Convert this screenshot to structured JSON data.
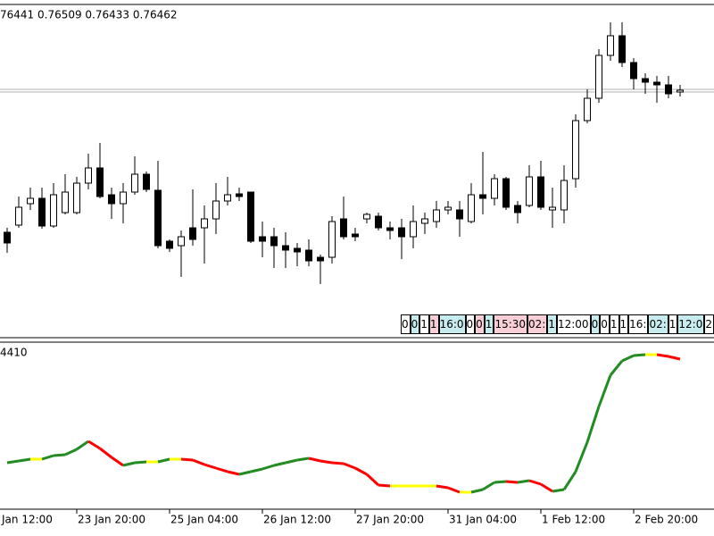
{
  "chart_data": {
    "type": "candlestick",
    "ohlc_text": "76441 0.76509 0.76433 0.76462",
    "ylim": [
      0.7102,
      0.7842
    ],
    "open": [
      0.7332,
      0.7348,
      0.7396,
      0.7408,
      0.7346,
      0.7376,
      0.7376,
      0.7442,
      0.7476,
      0.7416,
      0.7396,
      0.7422,
      0.7462,
      0.7426,
      0.7312,
      0.7302,
      0.7342,
      0.7342,
      0.7362,
      0.7402,
      0.7418,
      0.7422,
      0.7322,
      0.7322,
      0.7302,
      0.7296,
      0.7292,
      0.7276,
      0.7276,
      0.7362,
      0.7328,
      0.7362,
      0.7368,
      0.7342,
      0.7342,
      0.7322,
      0.7352,
      0.7356,
      0.7382,
      0.7382,
      0.7356,
      0.7416,
      0.7408,
      0.7452,
      0.7392,
      0.7392,
      0.7456,
      0.7382,
      0.7382,
      0.7452,
      0.7582,
      0.7632,
      0.7728,
      0.7772,
      0.7712,
      0.7676,
      0.7668,
      0.7662,
      0.7646
    ],
    "high": [
      0.7342,
      0.7412,
      0.7432,
      0.7432,
      0.7442,
      0.7462,
      0.7456,
      0.7508,
      0.7532,
      0.7432,
      0.7442,
      0.7502,
      0.7468,
      0.7492,
      0.7316,
      0.7336,
      0.7428,
      0.7392,
      0.7442,
      0.7456,
      0.7432,
      0.7422,
      0.7356,
      0.7342,
      0.7332,
      0.7308,
      0.7316,
      0.7282,
      0.7368,
      0.7412,
      0.7342,
      0.7376,
      0.7376,
      0.7356,
      0.7362,
      0.7392,
      0.7376,
      0.7402,
      0.7402,
      0.7402,
      0.7442,
      0.7512,
      0.7462,
      0.7456,
      0.7402,
      0.7482,
      0.7492,
      0.7432,
      0.7482,
      0.7596,
      0.7652,
      0.7742,
      0.7802,
      0.7802,
      0.7722,
      0.7688,
      0.7682,
      0.7682,
      0.7662
    ],
    "low": [
      0.7286,
      0.7342,
      0.7382,
      0.734,
      0.7342,
      0.7372,
      0.7372,
      0.7428,
      0.7408,
      0.7362,
      0.7352,
      0.7416,
      0.7422,
      0.7296,
      0.7288,
      0.7232,
      0.7302,
      0.7262,
      0.7328,
      0.7392,
      0.7402,
      0.7308,
      0.7276,
      0.7252,
      0.7252,
      0.7256,
      0.7256,
      0.7216,
      0.7262,
      0.7316,
      0.7312,
      0.7352,
      0.7336,
      0.7316,
      0.7272,
      0.7296,
      0.7328,
      0.7342,
      0.7372,
      0.7322,
      0.7352,
      0.7372,
      0.7392,
      0.7382,
      0.7352,
      0.7388,
      0.7382,
      0.7342,
      0.7352,
      0.7432,
      0.7576,
      0.7622,
      0.7716,
      0.7702,
      0.7652,
      0.7642,
      0.7622,
      0.7632,
      0.7636
    ],
    "close": [
      0.7308,
      0.7388,
      0.7408,
      0.7346,
      0.7416,
      0.7422,
      0.7442,
      0.7476,
      0.7412,
      0.7396,
      0.7422,
      0.7462,
      0.7428,
      0.7302,
      0.7296,
      0.7322,
      0.7316,
      0.7362,
      0.7402,
      0.7416,
      0.7412,
      0.7312,
      0.7312,
      0.7302,
      0.7292,
      0.7288,
      0.7268,
      0.7268,
      0.7356,
      0.7322,
      0.7322,
      0.7372,
      0.7342,
      0.7336,
      0.7322,
      0.7356,
      0.7362,
      0.7382,
      0.7388,
      0.7362,
      0.7416,
      0.7408,
      0.7452,
      0.7388,
      0.7376,
      0.7456,
      0.7388,
      0.7388,
      0.7448,
      0.7582,
      0.7632,
      0.7728,
      0.7772,
      0.7712,
      0.7676,
      0.7668,
      0.7662,
      0.7642,
      0.765
    ],
    "price_lines": [
      0.7652,
      0.7646
    ],
    "info_cells": [
      {
        "text": "0",
        "color": "#ffffff"
      },
      {
        "text": "0",
        "color": "#c6ecf0"
      },
      {
        "text": "1",
        "color": "#ffffff"
      },
      {
        "text": "1",
        "color": "#f8cfd6"
      },
      {
        "text": "16:0",
        "color": "#c6ecf0"
      },
      {
        "text": "0",
        "color": "#ffffff"
      },
      {
        "text": "0",
        "color": "#f8cfd6"
      },
      {
        "text": "1",
        "color": "#c6ecf0"
      },
      {
        "text": "15:30",
        "color": "#f8cfd6"
      },
      {
        "text": "02:",
        "color": "#f8cfd6"
      },
      {
        "text": "1",
        "color": "#c6ecf0"
      },
      {
        "text": "12:00",
        "color": "#ffffff"
      },
      {
        "text": "0",
        "color": "#c6ecf0"
      },
      {
        "text": "0",
        "color": "#ffffff"
      },
      {
        "text": "1",
        "color": "#ffffff"
      },
      {
        "text": "1",
        "color": "#ffffff"
      },
      {
        "text": "16:",
        "color": "#ffffff"
      },
      {
        "text": "02:",
        "color": "#c6ecf0"
      },
      {
        "text": "1",
        "color": "#ffffff"
      },
      {
        "text": "12:0",
        "color": "#c6ecf0"
      },
      {
        "text": "2",
        "color": "#ffffff"
      }
    ],
    "indicator": {
      "label": "4410",
      "ylim": [
        0,
        195
      ],
      "values": [
        57,
        59,
        61,
        61,
        65,
        66,
        72,
        81,
        73,
        63,
        54,
        57,
        58,
        58,
        61,
        61,
        60,
        55,
        51,
        47,
        44,
        47,
        50,
        54,
        57,
        60,
        62,
        59,
        57,
        56,
        51,
        44,
        32,
        31,
        31,
        31,
        31,
        31,
        29,
        24,
        24,
        27,
        35,
        36,
        35,
        37,
        33,
        25,
        27,
        47,
        80,
        120,
        155,
        171,
        177,
        178,
        178,
        176,
        173
      ],
      "color_up": "#228b22",
      "color_down": "#ff0000",
      "color_flat": "#ffff00"
    },
    "xticks": [
      {
        "value": -2,
        "label": "Jan 12:00"
      },
      {
        "value": 6,
        "label": "23 Jan 20:00"
      },
      {
        "value": 14,
        "label": "25 Jan 04:00"
      },
      {
        "value": 22,
        "label": "26 Jan 12:00"
      },
      {
        "value": 30,
        "label": "27 Jan 20:00"
      },
      {
        "value": 38,
        "label": "31 Jan 04:00"
      },
      {
        "value": 46,
        "label": "1 Feb 12:00"
      },
      {
        "value": 54,
        "label": "2 Feb 20:00"
      }
    ]
  }
}
